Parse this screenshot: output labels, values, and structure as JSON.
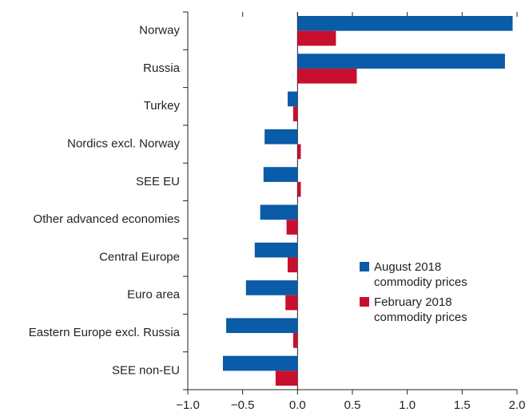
{
  "chart_data": {
    "type": "hbar",
    "categories": [
      "Norway",
      "Russia",
      "Turkey",
      "Nordics excl. Norway",
      "SEE EU",
      "Other advanced economies",
      "Central Europe",
      "Euro area",
      "Eastern Europe excl. Russia",
      "SEE non-EU"
    ],
    "series": [
      {
        "name": "August 2018 commodity prices",
        "color": "#0a5ba8",
        "values": [
          1.96,
          1.89,
          -0.09,
          -0.3,
          -0.31,
          -0.34,
          -0.39,
          -0.47,
          -0.65,
          -0.68
        ]
      },
      {
        "name": "February 2018 commodity prices",
        "color": "#c8102e",
        "values": [
          0.35,
          0.54,
          -0.04,
          0.03,
          0.03,
          -0.1,
          -0.09,
          -0.11,
          -0.04,
          -0.2
        ]
      }
    ],
    "xlim": [
      -1.0,
      2.0
    ],
    "xticks": [
      {
        "value": -1.0,
        "label": "−1.0"
      },
      {
        "value": -0.5,
        "label": "−0.5"
      },
      {
        "value": 0,
        "label": "0.0"
      },
      0.5,
      {
        "value": 1.0,
        "label": "1.0"
      },
      1.5,
      {
        "value": 2.0,
        "label": "2.0"
      }
    ]
  }
}
